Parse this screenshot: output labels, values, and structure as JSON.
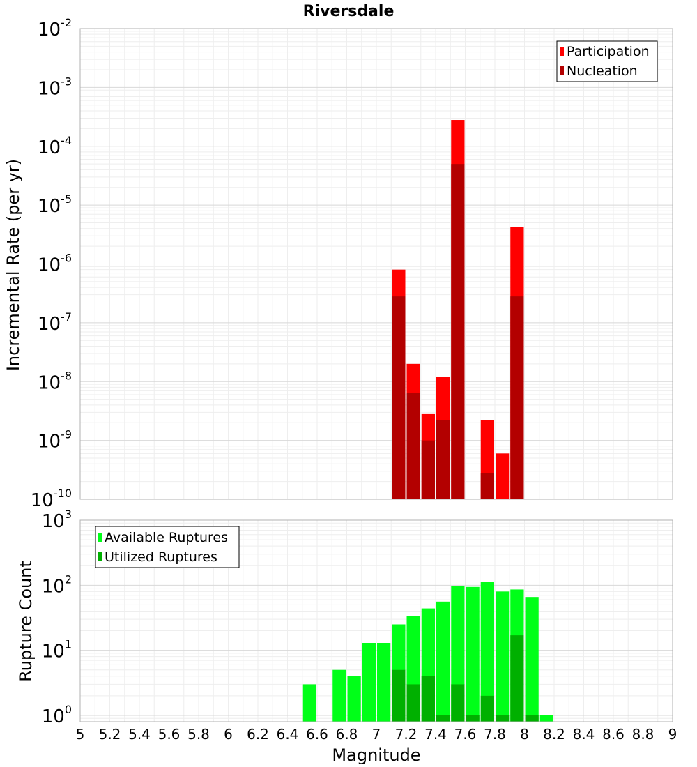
{
  "chart_data": [
    {
      "type": "bar",
      "title": "Riversdale",
      "ylabel": "Incremental Rate (per yr)",
      "yscale": "log",
      "ylim": [
        1e-10,
        0.01
      ],
      "xlim": [
        5,
        9
      ],
      "bin_width": 0.1,
      "grid": true,
      "legend_position": "top-right",
      "series": [
        {
          "name": "Participation",
          "color": "#ff0000",
          "x": [
            7.15,
            7.25,
            7.35,
            7.45,
            7.55,
            7.75,
            7.85,
            7.95
          ],
          "values": [
            8e-07,
            2e-08,
            2.8e-09,
            1.2e-08,
            0.00028,
            2.2e-09,
            6e-10,
            4.3e-06
          ]
        },
        {
          "name": "Nucleation",
          "color": "#b30000",
          "x": [
            7.15,
            7.25,
            7.35,
            7.45,
            7.55,
            7.75,
            7.85,
            7.95
          ],
          "values": [
            2.8e-07,
            6.5e-09,
            1e-09,
            2.2e-09,
            5e-05,
            2.8e-10,
            null,
            2.8e-07
          ]
        }
      ]
    },
    {
      "type": "bar",
      "ylabel": "Rupture Count",
      "xlabel": "Magnitude",
      "yscale": "log",
      "ylim": [
        0.8,
        1000
      ],
      "xlim": [
        5,
        9
      ],
      "bin_width": 0.1,
      "grid": true,
      "legend_position": "top-left",
      "x_ticks": [
        "5",
        "5.2",
        "5.4",
        "5.6",
        "5.8",
        "6",
        "6.2",
        "6.4",
        "6.6",
        "6.8",
        "7",
        "7.2",
        "7.4",
        "7.6",
        "7.8",
        "8",
        "8.2",
        "8.4",
        "8.6",
        "8.8",
        "9"
      ],
      "series": [
        {
          "name": "Available Ruptures",
          "color": "#00ff18",
          "x": [
            6.55,
            6.75,
            6.85,
            6.95,
            7.05,
            7.15,
            7.25,
            7.35,
            7.45,
            7.55,
            7.65,
            7.75,
            7.85,
            7.95,
            8.05,
            8.15
          ],
          "values": [
            3,
            5,
            4,
            13,
            13,
            25,
            34,
            44,
            56,
            96,
            94,
            113,
            80,
            86,
            66,
            1
          ]
        },
        {
          "name": "Utilized Ruptures",
          "color": "#00b000",
          "x": [
            7.15,
            7.25,
            7.35,
            7.45,
            7.55,
            7.65,
            7.75,
            7.85,
            7.95,
            8.05
          ],
          "values": [
            5,
            3,
            4,
            1,
            3,
            1,
            2,
            1,
            17,
            1
          ]
        }
      ]
    }
  ]
}
